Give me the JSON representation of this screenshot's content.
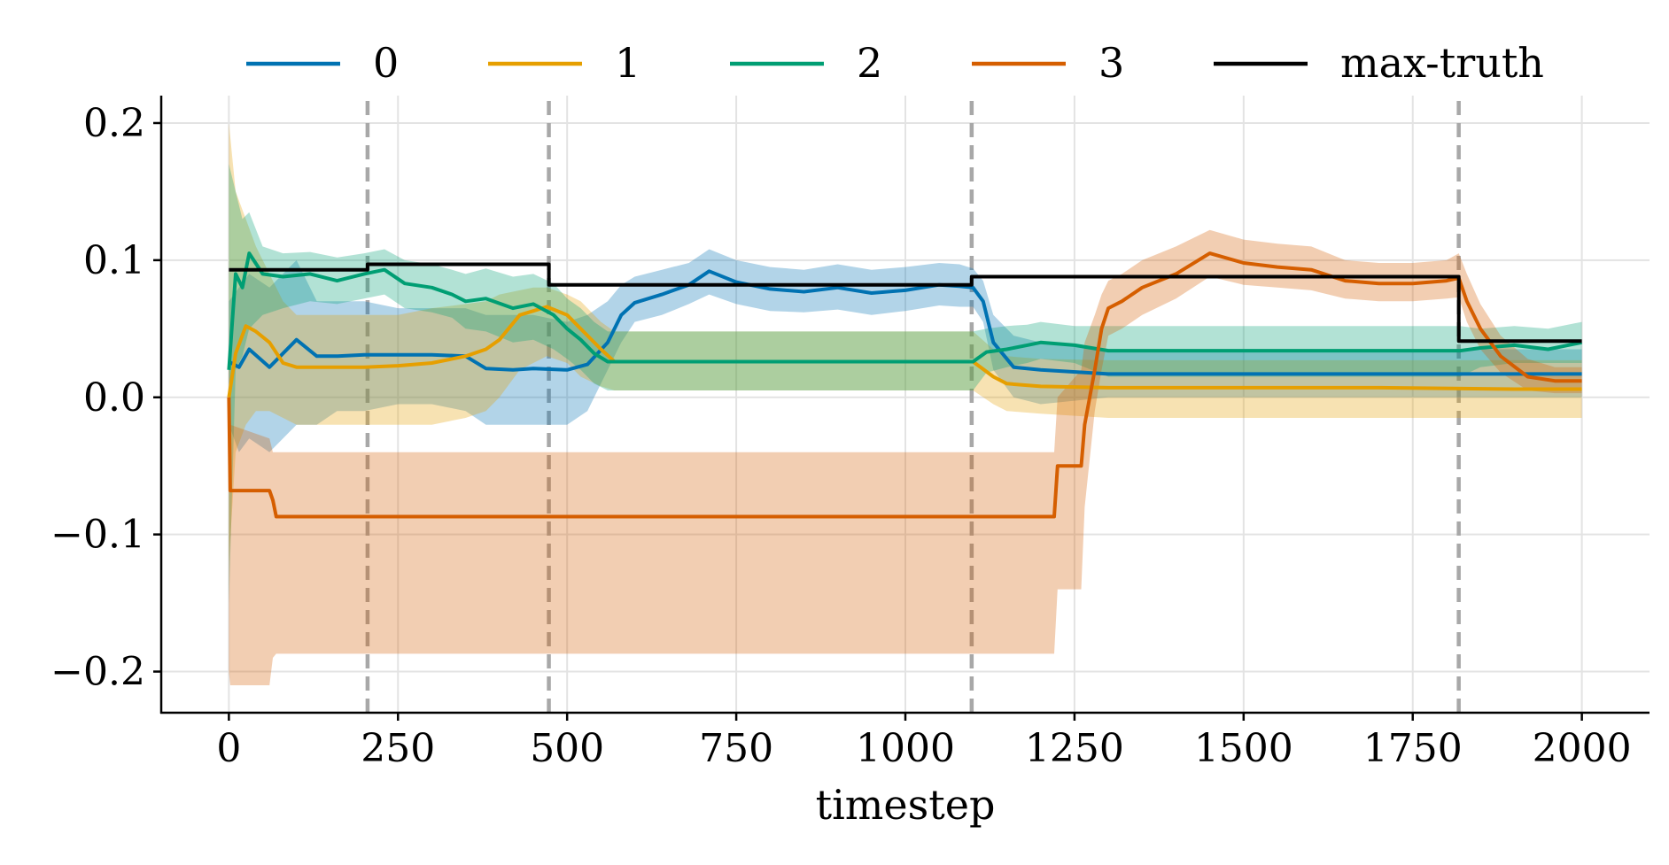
{
  "chart_data": {
    "type": "line",
    "title": "",
    "xlabel": "timestep",
    "ylabel": "",
    "xlim": [
      -100,
      2100
    ],
    "ylim": [
      -0.23,
      0.22
    ],
    "xticks": [
      0,
      250,
      500,
      750,
      1000,
      1250,
      1500,
      1750,
      2000
    ],
    "xtick_labels": [
      "0",
      "250",
      "500",
      "750",
      "1000",
      "1250",
      "1500",
      "1750",
      "2000"
    ],
    "yticks": [
      -0.2,
      -0.1,
      0.0,
      0.1,
      0.2
    ],
    "ytick_labels": [
      "−0.2",
      "−0.1",
      "0.0",
      "0.1",
      "0.2"
    ],
    "grid": true,
    "legend_position": "top-center",
    "change_points": [
      205,
      473,
      1098,
      1818
    ],
    "series": [
      {
        "name": "0",
        "color": "#0072B2",
        "x": [
          0,
          15,
          30,
          60,
          100,
          130,
          160,
          200,
          250,
          300,
          350,
          380,
          420,
          450,
          500,
          530,
          560,
          580,
          600,
          640,
          680,
          710,
          750,
          800,
          850,
          900,
          950,
          1000,
          1050,
          1080,
          1100,
          1115,
          1130,
          1160,
          1200,
          1300,
          1500,
          1700,
          1850,
          1950,
          2000
        ],
        "y": [
          0.026,
          0.022,
          0.035,
          0.022,
          0.042,
          0.03,
          0.03,
          0.031,
          0.031,
          0.031,
          0.03,
          0.021,
          0.02,
          0.021,
          0.02,
          0.024,
          0.04,
          0.06,
          0.069,
          0.075,
          0.082,
          0.092,
          0.084,
          0.079,
          0.077,
          0.08,
          0.076,
          0.078,
          0.082,
          0.081,
          0.08,
          0.07,
          0.04,
          0.022,
          0.02,
          0.017,
          0.017,
          0.017,
          0.017,
          0.017,
          0.017
        ],
        "lower": [
          -0.02,
          -0.04,
          -0.03,
          -0.04,
          -0.02,
          -0.02,
          -0.01,
          -0.01,
          -0.005,
          -0.005,
          -0.01,
          -0.02,
          -0.02,
          -0.02,
          -0.02,
          -0.01,
          0.02,
          0.04,
          0.055,
          0.06,
          0.068,
          0.075,
          0.068,
          0.063,
          0.062,
          0.064,
          0.06,
          0.063,
          0.067,
          0.066,
          0.066,
          0.055,
          0.02,
          0.0,
          -0.005,
          0.0,
          0.0,
          0.0,
          0.0,
          0.0,
          0.0
        ],
        "upper": [
          0.07,
          0.08,
          0.09,
          0.08,
          0.1,
          0.07,
          0.07,
          0.07,
          0.065,
          0.065,
          0.065,
          0.06,
          0.06,
          0.06,
          0.055,
          0.06,
          0.07,
          0.082,
          0.088,
          0.093,
          0.098,
          0.108,
          0.1,
          0.095,
          0.093,
          0.097,
          0.093,
          0.095,
          0.098,
          0.097,
          0.094,
          0.085,
          0.06,
          0.045,
          0.04,
          0.035,
          0.035,
          0.035,
          0.035,
          0.035,
          0.035
        ]
      },
      {
        "name": "1",
        "color": "#E69F00",
        "x": [
          0,
          10,
          25,
          40,
          60,
          80,
          100,
          150,
          200,
          250,
          300,
          350,
          380,
          400,
          430,
          450,
          470,
          500,
          520,
          550,
          570,
          700,
          900,
          1100,
          1130,
          1150,
          1200,
          1300,
          1500,
          1700,
          1900,
          2000
        ],
        "y": [
          0.0,
          0.032,
          0.052,
          0.048,
          0.04,
          0.025,
          0.022,
          0.022,
          0.022,
          0.023,
          0.025,
          0.03,
          0.035,
          0.042,
          0.06,
          0.063,
          0.066,
          0.06,
          0.05,
          0.035,
          0.026,
          0.026,
          0.026,
          0.026,
          0.015,
          0.01,
          0.008,
          0.007,
          0.007,
          0.007,
          0.006,
          0.006
        ],
        "lower": [
          -0.12,
          -0.04,
          -0.02,
          -0.01,
          -0.01,
          -0.015,
          -0.02,
          -0.02,
          -0.02,
          -0.02,
          -0.02,
          -0.015,
          -0.01,
          0.0,
          0.02,
          0.025,
          0.03,
          0.025,
          0.015,
          0.008,
          0.005,
          0.005,
          0.005,
          0.005,
          -0.005,
          -0.01,
          -0.012,
          -0.015,
          -0.015,
          -0.015,
          -0.015,
          -0.015
        ],
        "upper": [
          0.2,
          0.15,
          0.13,
          0.11,
          0.09,
          0.07,
          0.06,
          0.06,
          0.06,
          0.06,
          0.065,
          0.068,
          0.07,
          0.075,
          0.078,
          0.08,
          0.08,
          0.075,
          0.07,
          0.055,
          0.048,
          0.048,
          0.048,
          0.048,
          0.035,
          0.03,
          0.028,
          0.027,
          0.027,
          0.027,
          0.027,
          0.027
        ]
      },
      {
        "name": "2",
        "color": "#009E73",
        "x": [
          0,
          10,
          20,
          30,
          50,
          80,
          120,
          160,
          200,
          230,
          260,
          300,
          330,
          350,
          380,
          420,
          450,
          480,
          500,
          520,
          540,
          560,
          700,
          900,
          1100,
          1120,
          1150,
          1180,
          1200,
          1250,
          1300,
          1500,
          1700,
          1820,
          1850,
          1900,
          1950,
          2000
        ],
        "y": [
          0.02,
          0.09,
          0.08,
          0.105,
          0.09,
          0.088,
          0.09,
          0.085,
          0.09,
          0.093,
          0.083,
          0.08,
          0.075,
          0.07,
          0.072,
          0.065,
          0.068,
          0.06,
          0.05,
          0.042,
          0.032,
          0.026,
          0.026,
          0.026,
          0.026,
          0.033,
          0.035,
          0.038,
          0.04,
          0.038,
          0.034,
          0.034,
          0.034,
          0.034,
          0.036,
          0.038,
          0.035,
          0.04
        ],
        "lower": [
          -0.15,
          0.02,
          0.03,
          0.05,
          0.06,
          0.065,
          0.07,
          0.068,
          0.072,
          0.075,
          0.065,
          0.062,
          0.058,
          0.05,
          0.048,
          0.04,
          0.042,
          0.035,
          0.028,
          0.02,
          0.01,
          0.005,
          0.005,
          0.005,
          0.005,
          0.018,
          0.022,
          0.025,
          0.028,
          0.025,
          0.015,
          0.015,
          0.015,
          0.015,
          0.022,
          0.025,
          0.025,
          0.025
        ],
        "upper": [
          0.17,
          0.15,
          0.13,
          0.135,
          0.11,
          0.105,
          0.106,
          0.102,
          0.105,
          0.108,
          0.1,
          0.097,
          0.093,
          0.09,
          0.094,
          0.088,
          0.09,
          0.083,
          0.072,
          0.065,
          0.055,
          0.048,
          0.048,
          0.048,
          0.048,
          0.05,
          0.052,
          0.053,
          0.055,
          0.052,
          0.052,
          0.052,
          0.052,
          0.052,
          0.05,
          0.052,
          0.05,
          0.055
        ]
      },
      {
        "name": "3",
        "color": "#D55E00",
        "x": [
          0,
          2,
          60,
          65,
          70,
          75,
          1220,
          1225,
          1260,
          1265,
          1280,
          1290,
          1300,
          1320,
          1350,
          1400,
          1450,
          1500,
          1550,
          1600,
          1650,
          1700,
          1750,
          1800,
          1818,
          1830,
          1850,
          1880,
          1920,
          1960,
          2000
        ],
        "y": [
          0.0,
          -0.068,
          -0.068,
          -0.075,
          -0.087,
          -0.087,
          -0.087,
          -0.05,
          -0.05,
          -0.02,
          0.02,
          0.05,
          0.065,
          0.07,
          0.08,
          0.09,
          0.105,
          0.098,
          0.095,
          0.093,
          0.085,
          0.083,
          0.083,
          0.085,
          0.087,
          0.07,
          0.05,
          0.03,
          0.015,
          0.012,
          0.012
        ],
        "lower": [
          -0.2,
          -0.21,
          -0.21,
          -0.19,
          -0.187,
          -0.187,
          -0.187,
          -0.14,
          -0.14,
          -0.08,
          -0.01,
          0.02,
          0.045,
          0.05,
          0.06,
          0.072,
          0.088,
          0.082,
          0.08,
          0.078,
          0.072,
          0.07,
          0.07,
          0.072,
          0.073,
          0.055,
          0.035,
          0.018,
          0.005,
          0.003,
          0.003
        ],
        "upper": [
          0.05,
          -0.02,
          -0.03,
          -0.04,
          -0.04,
          -0.04,
          -0.04,
          0.0,
          0.02,
          0.04,
          0.06,
          0.075,
          0.085,
          0.09,
          0.1,
          0.11,
          0.122,
          0.115,
          0.112,
          0.11,
          0.1,
          0.098,
          0.098,
          0.1,
          0.105,
          0.09,
          0.068,
          0.045,
          0.028,
          0.022,
          0.022
        ]
      },
      {
        "name": "max-truth",
        "color": "#000000",
        "x": [
          0,
          205,
          205,
          473,
          473,
          1098,
          1098,
          1818,
          1818,
          2000
        ],
        "y": [
          0.093,
          0.093,
          0.097,
          0.097,
          0.082,
          0.082,
          0.088,
          0.088,
          0.041,
          0.041
        ]
      }
    ]
  }
}
